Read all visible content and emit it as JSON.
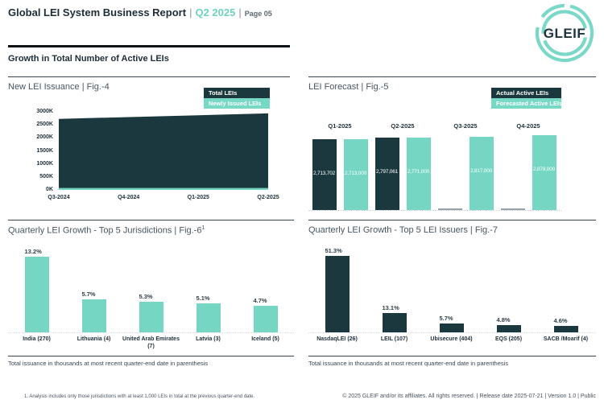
{
  "header": {
    "title": "Global LEI System Business Report",
    "separator": "|",
    "period": "Q2 2025",
    "page": "Page 05",
    "logo_text": "GLEIF"
  },
  "section_heading": "Growth in Total Number of Active LEIs",
  "colors": {
    "dark": "#1b383e",
    "teal": "#74d6c3",
    "legend_teal": "#78d8c6",
    "accent_text": "#6fd2c0",
    "gray_bar": "#97a2ab"
  },
  "chart_data": [
    {
      "id": "issuance",
      "type": "area",
      "title": "New LEI Issuance | Fig.-4",
      "x": [
        "Q3-2024",
        "Q4-2024",
        "Q1-2025",
        "Q2-2025"
      ],
      "series": [
        {
          "name": "Total LEIs",
          "color": "#1b383e",
          "values_thousands": [
            2730,
            2800,
            2870,
            2940
          ]
        },
        {
          "name": "Newly Issued LEIs",
          "color": "#74d6c3",
          "values_thousands": [
            75,
            75,
            75,
            75
          ]
        }
      ],
      "ylim_thousands": [
        0,
        3000
      ],
      "yticks": [
        "3000K",
        "2500K",
        "2000K",
        "1500K",
        "1000K",
        "500K",
        "0K"
      ],
      "legend": [
        {
          "label": "Total LEIs",
          "color": "#1b383e"
        },
        {
          "label": "Newly Issued LEIs",
          "color": "#78d8c6"
        }
      ],
      "legend_position": "top-right"
    },
    {
      "id": "forecast",
      "type": "bar",
      "title": "LEI Forecast | Fig.-5",
      "categories": [
        "Q1-2025",
        "Q2-2025",
        "Q3-2025",
        "Q4-2025"
      ],
      "series": [
        {
          "name": "Actual Active LEIs",
          "color": "#1b383e",
          "values": [
            2713702,
            2797061,
            null,
            null
          ]
        },
        {
          "name": "Forecasted Active LEIs",
          "color": "#74d6c3",
          "values": [
            2713000,
            2771000,
            2817000,
            2878000
          ]
        }
      ],
      "ylim": [
        0,
        3000000
      ],
      "legend": [
        {
          "label": "Actual Active LEIs",
          "color": "#1b383e"
        },
        {
          "label": "Forecasted Active LEIs",
          "color": "#78d8c6"
        }
      ],
      "legend_position": "top-right"
    },
    {
      "id": "jurisdictions",
      "type": "bar",
      "title": "Quarterly LEI Growth - Top 5 Jurisdictions | Fig.-6",
      "title_superscript": "1",
      "categories": [
        "India",
        "Lithuania",
        "United Arab Emirates",
        "Latvia",
        "Iceland"
      ],
      "totals_in_thousands": [
        270,
        4,
        7,
        3,
        5
      ],
      "values_pct": [
        13.2,
        5.7,
        5.3,
        5.1,
        4.7
      ],
      "bar_color": "#74d6c3",
      "note": "Total issuance in thousands at most recent quarter-end date in parenthesis"
    },
    {
      "id": "issuers",
      "type": "bar",
      "title": "Quarterly LEI Growth - Top 5 LEI Issuers | Fig.-7",
      "categories": [
        "NasdaqLEI",
        "LEIL",
        "Ubisecure",
        "EQS",
        "SACB /Moarif"
      ],
      "totals_in_thousands": [
        26,
        107,
        404,
        205,
        4
      ],
      "values_pct": [
        51.3,
        13.1,
        5.7,
        4.8,
        4.6
      ],
      "bar_color": "#1b383e",
      "note": "Total issuance in thousands at most recent quarter-end date in parenthesis"
    }
  ],
  "footer": {
    "footnote": "1. Analysis includes only those jurisdictions with at least 1,000 LEIs in total at the previous quarter-end date.",
    "copyright": "© 2025 GLEIF and/or its affiliates. All rights reserved.  |  Release date 2025-07-21  |  Version 1.0  |  Public"
  }
}
